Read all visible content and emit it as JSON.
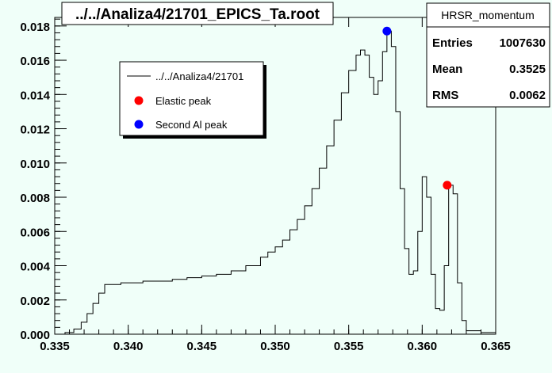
{
  "title": "../../Analiza4/21701_EPICS_Ta.root",
  "stats": {
    "name": "HRSR_momentum",
    "rows": [
      {
        "label": "Entries",
        "value": "1007630"
      },
      {
        "label": "Mean",
        "value": "0.3525"
      },
      {
        "label": "RMS",
        "value": "0.0062"
      }
    ]
  },
  "legend": {
    "line_label": "../../Analiza4/21701",
    "elastic_label": "Elastic peak",
    "second_label": "Second Al peak"
  },
  "colors": {
    "background": "#f0fff9",
    "elastic": "#ff0000",
    "second": "#0000ff",
    "line": "#000000"
  },
  "chart_data": {
    "type": "line",
    "xlim": [
      0.335,
      0.365
    ],
    "ylim": [
      0,
      0.0185
    ],
    "x_ticks": [
      "0.335",
      "0.340",
      "0.345",
      "0.350",
      "0.355",
      "0.360",
      "0.365"
    ],
    "y_ticks": [
      "0.000",
      "0.002",
      "0.004",
      "0.006",
      "0.008",
      "0.010",
      "0.012",
      "0.014",
      "0.016",
      "0.018"
    ],
    "series": [
      {
        "values": [
          [
            0.335,
            0.0
          ],
          [
            0.3357,
            0.0001
          ],
          [
            0.3363,
            0.0003
          ],
          [
            0.3368,
            0.0007
          ],
          [
            0.3372,
            0.0012
          ],
          [
            0.3376,
            0.0018
          ],
          [
            0.338,
            0.0024
          ],
          [
            0.3384,
            0.0029
          ],
          [
            0.339,
            0.0029
          ],
          [
            0.3395,
            0.003
          ],
          [
            0.34,
            0.003
          ],
          [
            0.341,
            0.0031
          ],
          [
            0.342,
            0.0031
          ],
          [
            0.343,
            0.0032
          ],
          [
            0.344,
            0.0033
          ],
          [
            0.345,
            0.0034
          ],
          [
            0.346,
            0.0035
          ],
          [
            0.347,
            0.0037
          ],
          [
            0.348,
            0.004
          ],
          [
            0.349,
            0.0045
          ],
          [
            0.3495,
            0.0048
          ],
          [
            0.35,
            0.0051
          ],
          [
            0.3505,
            0.0055
          ],
          [
            0.351,
            0.0061
          ],
          [
            0.3515,
            0.0067
          ],
          [
            0.352,
            0.0075
          ],
          [
            0.3525,
            0.0085
          ],
          [
            0.353,
            0.0097
          ],
          [
            0.3535,
            0.011
          ],
          [
            0.354,
            0.0125
          ],
          [
            0.3545,
            0.0141
          ],
          [
            0.355,
            0.0154
          ],
          [
            0.3555,
            0.0163
          ],
          [
            0.3558,
            0.0166
          ],
          [
            0.3561,
            0.0163
          ],
          [
            0.3564,
            0.015
          ],
          [
            0.3567,
            0.014
          ],
          [
            0.357,
            0.0148
          ],
          [
            0.3573,
            0.0165
          ],
          [
            0.3576,
            0.0177
          ],
          [
            0.3579,
            0.0168
          ],
          [
            0.3582,
            0.013
          ],
          [
            0.3585,
            0.0085
          ],
          [
            0.3588,
            0.005
          ],
          [
            0.3591,
            0.0035
          ],
          [
            0.3594,
            0.0037
          ],
          [
            0.3597,
            0.006
          ],
          [
            0.36,
            0.0092
          ],
          [
            0.3603,
            0.008
          ],
          [
            0.3606,
            0.0035
          ],
          [
            0.3609,
            0.0015
          ],
          [
            0.3612,
            0.0014
          ],
          [
            0.3615,
            0.004
          ],
          [
            0.3618,
            0.0087
          ],
          [
            0.3621,
            0.0082
          ],
          [
            0.3624,
            0.003
          ],
          [
            0.3627,
            0.0008
          ],
          [
            0.363,
            0.0002
          ],
          [
            0.364,
            0.0001
          ],
          [
            0.365,
            0.0
          ]
        ]
      }
    ],
    "markers": [
      {
        "label_ref": "second",
        "x": 0.3576,
        "y": 0.0177
      },
      {
        "label_ref": "elastic",
        "x": 0.3617,
        "y": 0.0087
      }
    ]
  }
}
